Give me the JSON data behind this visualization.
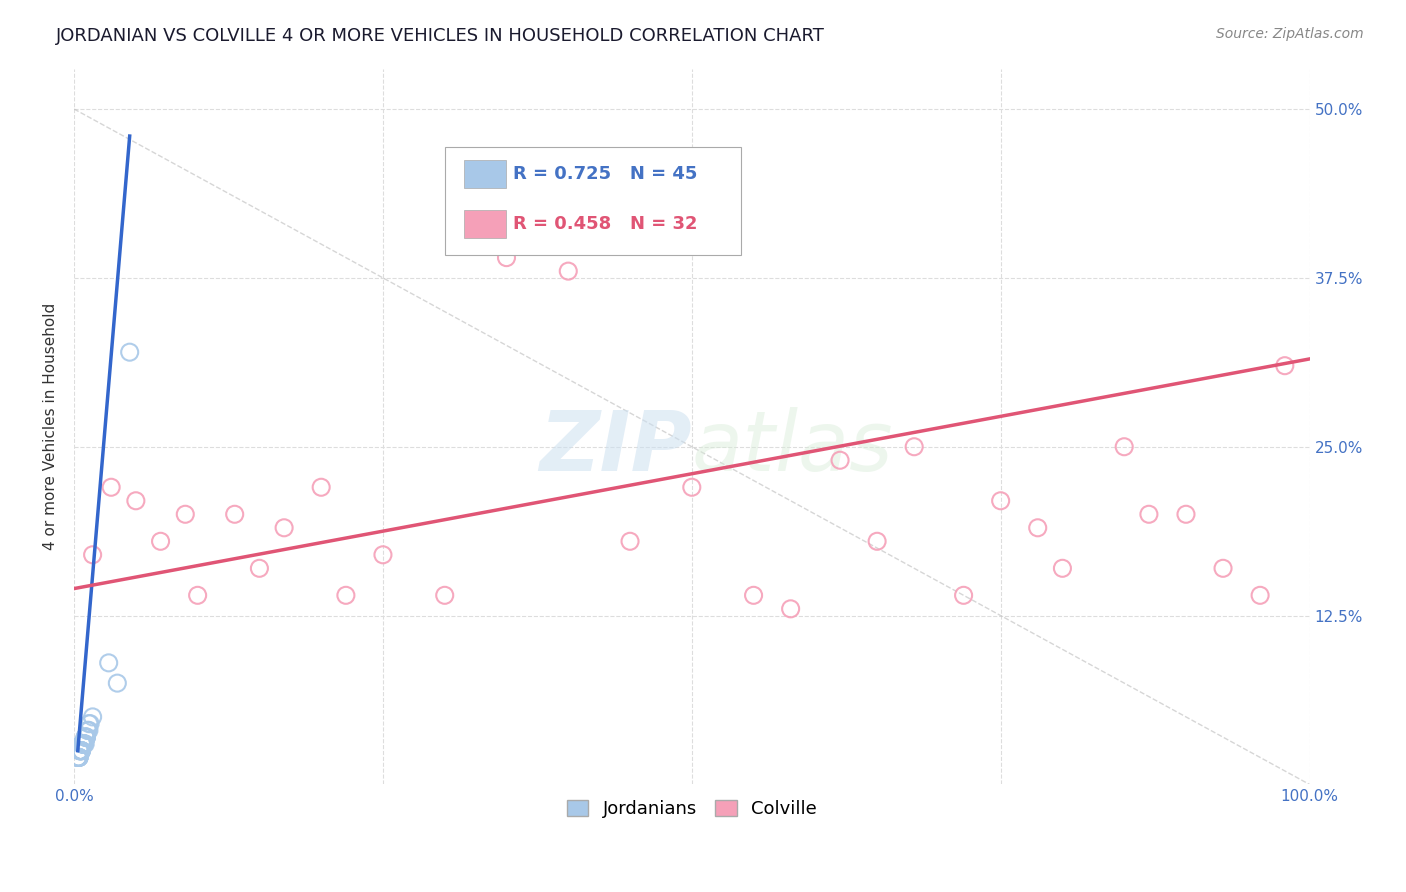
{
  "title": "JORDANIAN VS COLVILLE 4 OR MORE VEHICLES IN HOUSEHOLD CORRELATION CHART",
  "source_text": "Source: ZipAtlas.com",
  "ylabel": "4 or more Vehicles in Household",
  "xlim": [
    0,
    100
  ],
  "ylim": [
    0,
    53
  ],
  "xtick_positions": [
    0,
    100
  ],
  "xtick_labels": [
    "0.0%",
    "100.0%"
  ],
  "ytick_positions": [
    12.5,
    25.0,
    37.5,
    50.0
  ],
  "ytick_labels": [
    "12.5%",
    "25.0%",
    "37.5%",
    "50.0%"
  ],
  "background_color": "#ffffff",
  "grid_color": "#dddddd",
  "watermark_zip": "ZIP",
  "watermark_atlas": "atlas",
  "legend_r1": "R = 0.725",
  "legend_n1": "N = 45",
  "legend_r2": "R = 0.458",
  "legend_n2": "N = 32",
  "blue_scatter_color": "#a8c8e8",
  "pink_scatter_color": "#f5a0b8",
  "blue_line_color": "#3366cc",
  "pink_line_color": "#e05575",
  "diag_color": "#bbbbbb",
  "jordanians_x": [
    0.5,
    0.7,
    1.0,
    1.2,
    1.5,
    0.3,
    0.8,
    1.3,
    0.4,
    0.6,
    0.9,
    1.1,
    0.5,
    0.7,
    0.4,
    0.6,
    0.8,
    1.0,
    0.3,
    0.5,
    0.7,
    0.9,
    0.4,
    0.6,
    0.8,
    1.2,
    0.5,
    0.7,
    0.9,
    0.3,
    0.6,
    0.8,
    1.0,
    0.4,
    0.7,
    0.5,
    0.8,
    0.6,
    0.4,
    1.1,
    3.5,
    4.5,
    2.8,
    0.5,
    0.9
  ],
  "jordanians_y": [
    2.5,
    3.0,
    3.5,
    4.0,
    5.0,
    2.0,
    3.0,
    4.5,
    2.5,
    3.0,
    3.5,
    4.0,
    2.5,
    3.0,
    2.0,
    2.5,
    3.0,
    3.5,
    2.0,
    2.5,
    3.0,
    3.5,
    2.0,
    2.5,
    3.0,
    4.5,
    2.5,
    3.0,
    3.5,
    2.0,
    2.5,
    3.0,
    3.5,
    2.0,
    3.0,
    2.5,
    3.0,
    2.5,
    2.0,
    4.0,
    7.5,
    32.0,
    9.0,
    2.5,
    3.0
  ],
  "colville_x": [
    1.5,
    3.0,
    5.0,
    7.0,
    9.0,
    10.0,
    13.0,
    15.0,
    17.0,
    20.0,
    22.0,
    25.0,
    30.0,
    35.0,
    40.0,
    45.0,
    50.0,
    55.0,
    58.0,
    62.0,
    65.0,
    68.0,
    72.0,
    75.0,
    78.0,
    80.0,
    85.0,
    87.0,
    90.0,
    93.0,
    96.0,
    98.0
  ],
  "colville_y": [
    17.0,
    22.0,
    21.0,
    18.0,
    20.0,
    14.0,
    20.0,
    16.0,
    19.0,
    22.0,
    14.0,
    17.0,
    14.0,
    39.0,
    38.0,
    18.0,
    22.0,
    14.0,
    13.0,
    24.0,
    18.0,
    25.0,
    14.0,
    21.0,
    19.0,
    16.0,
    25.0,
    20.0,
    20.0,
    16.0,
    14.0,
    31.0
  ],
  "blue_reg_x0": 0.3,
  "blue_reg_x1": 4.5,
  "blue_reg_y0": 2.5,
  "blue_reg_y1": 48.0,
  "pink_reg_x0": 0.0,
  "pink_reg_x1": 100.0,
  "pink_reg_y0": 14.5,
  "pink_reg_y1": 31.5,
  "title_fontsize": 13,
  "axis_label_fontsize": 11,
  "tick_fontsize": 11,
  "legend_fontsize": 13,
  "source_fontsize": 10
}
